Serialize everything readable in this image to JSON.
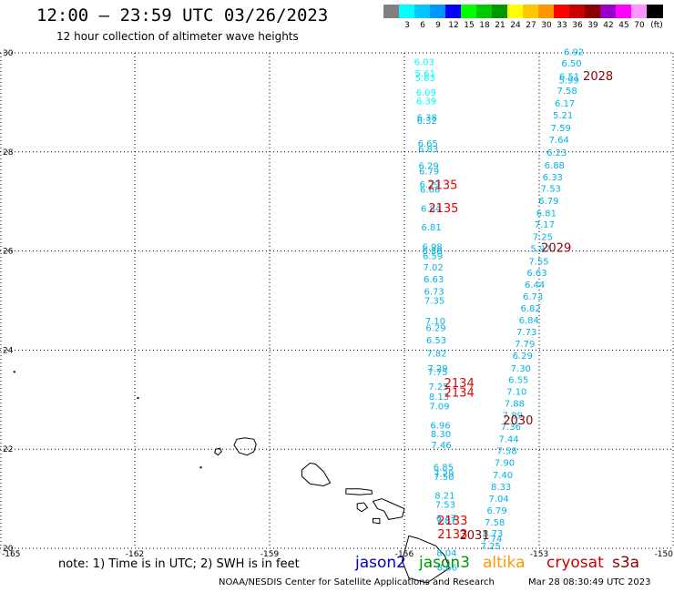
{
  "header": {
    "title": "12:00 – 23:59 UTC 03/26/2023",
    "subtitle": "12 hour collection of altimeter wave heights"
  },
  "legend": {
    "unit": "(ft)",
    "items": [
      {
        "label": "",
        "color": "#808080"
      },
      {
        "label": "3",
        "color": "#00ffff"
      },
      {
        "label": "6",
        "color": "#00c8ff"
      },
      {
        "label": "9",
        "color": "#0096ff"
      },
      {
        "label": "12",
        "color": "#0000ff"
      },
      {
        "label": "15",
        "color": "#00ff00"
      },
      {
        "label": "18",
        "color": "#00c800"
      },
      {
        "label": "21",
        "color": "#009600"
      },
      {
        "label": "24",
        "color": "#ffff00"
      },
      {
        "label": "27",
        "color": "#ffc800"
      },
      {
        "label": "30",
        "color": "#ff9600"
      },
      {
        "label": "33",
        "color": "#ff0000"
      },
      {
        "label": "36",
        "color": "#c80000"
      },
      {
        "label": "39",
        "color": "#8b0000"
      },
      {
        "label": "42",
        "color": "#9600c8"
      },
      {
        "label": "45",
        "color": "#ff00ff"
      },
      {
        "label": "70",
        "color": "#ff96ff"
      },
      {
        "label": "",
        "color": "#000000"
      }
    ]
  },
  "map": {
    "lon_range": [
      -165,
      -150
    ],
    "lat_range": [
      20,
      30
    ],
    "lon_ticks": [
      -165,
      -162,
      -159,
      -156,
      -153,
      -150
    ],
    "lat_ticks": [
      20,
      22,
      24,
      26,
      28,
      30
    ],
    "lon_tick_labels": [
      "-165",
      "-162",
      "-159",
      "-156",
      "-153",
      "-150"
    ],
    "lat_tick_labels": [
      "20",
      "22",
      "24",
      "26",
      "28",
      "30"
    ]
  },
  "colors": {
    "cyan": "#00ffff",
    "light_blue": "#00b4e6",
    "red": "#e60000",
    "dark_red": "#8b0000"
  },
  "tracks": [
    {
      "name": "west-track",
      "points": [
        {
          "lat": 29.75,
          "lon": -155.56,
          "v": "6.03",
          "c": "cyan"
        },
        {
          "lat": 29.52,
          "lon": -155.54,
          "v": "5.61",
          "c": "cyan"
        },
        {
          "lat": 29.43,
          "lon": -155.54,
          "v": "5.83",
          "c": "cyan"
        },
        {
          "lat": 29.14,
          "lon": -155.52,
          "v": "6.09",
          "c": "cyan"
        },
        {
          "lat": 28.96,
          "lon": -155.51,
          "v": "6.39",
          "c": "cyan"
        },
        {
          "lat": 28.63,
          "lon": -155.5,
          "v": "6.38",
          "c": "light_blue"
        },
        {
          "lat": 28.57,
          "lon": -155.5,
          "v": "6.32",
          "c": "light_blue"
        },
        {
          "lat": 28.11,
          "lon": -155.48,
          "v": "6.65",
          "c": "light_blue"
        },
        {
          "lat": 28.0,
          "lon": -155.47,
          "v": "6.83",
          "c": "light_blue"
        },
        {
          "lat": 27.66,
          "lon": -155.46,
          "v": "6.29",
          "c": "light_blue"
        },
        {
          "lat": 27.55,
          "lon": -155.45,
          "v": "6.79",
          "c": "light_blue"
        },
        {
          "lat": 27.28,
          "lon": -155.44,
          "v": "6.29",
          "c": "light_blue"
        },
        {
          "lat": 27.18,
          "lon": -155.43,
          "v": "6.66",
          "c": "light_blue"
        },
        {
          "lat": 26.79,
          "lon": -155.41,
          "v": "6.84",
          "c": "light_blue"
        },
        {
          "lat": 26.42,
          "lon": -155.4,
          "v": "6.81",
          "c": "light_blue"
        },
        {
          "lat": 26.02,
          "lon": -155.38,
          "v": "6.98",
          "c": "light_blue"
        },
        {
          "lat": 25.94,
          "lon": -155.38,
          "v": "6.88",
          "c": "light_blue"
        },
        {
          "lat": 25.84,
          "lon": -155.37,
          "v": "6.59",
          "c": "light_blue"
        },
        {
          "lat": 25.61,
          "lon": -155.36,
          "v": "7.02",
          "c": "light_blue"
        },
        {
          "lat": 25.37,
          "lon": -155.35,
          "v": "6.63",
          "c": "light_blue"
        },
        {
          "lat": 25.12,
          "lon": -155.34,
          "v": "6.73",
          "c": "light_blue"
        },
        {
          "lat": 24.94,
          "lon": -155.33,
          "v": "7.35",
          "c": "light_blue"
        },
        {
          "lat": 24.52,
          "lon": -155.31,
          "v": "7.10",
          "c": "light_blue"
        },
        {
          "lat": 24.38,
          "lon": -155.3,
          "v": "6.29",
          "c": "light_blue"
        },
        {
          "lat": 24.14,
          "lon": -155.29,
          "v": "6.53",
          "c": "light_blue"
        },
        {
          "lat": 23.87,
          "lon": -155.28,
          "v": "7.82",
          "c": "light_blue"
        },
        {
          "lat": 23.57,
          "lon": -155.26,
          "v": "7.29",
          "c": "light_blue"
        },
        {
          "lat": 23.49,
          "lon": -155.26,
          "v": "7.75",
          "c": "light_blue"
        },
        {
          "lat": 23.2,
          "lon": -155.24,
          "v": "7.25",
          "c": "light_blue"
        },
        {
          "lat": 23.0,
          "lon": -155.23,
          "v": "8.13",
          "c": "light_blue"
        },
        {
          "lat": 22.8,
          "lon": -155.22,
          "v": "7.09",
          "c": "light_blue"
        },
        {
          "lat": 22.42,
          "lon": -155.2,
          "v": "6.96",
          "c": "light_blue"
        },
        {
          "lat": 22.24,
          "lon": -155.19,
          "v": "8.30",
          "c": "light_blue"
        },
        {
          "lat": 22.02,
          "lon": -155.18,
          "v": "7.46",
          "c": "light_blue"
        },
        {
          "lat": 21.57,
          "lon": -155.13,
          "v": "6.85",
          "c": "light_blue"
        },
        {
          "lat": 21.44,
          "lon": -155.12,
          "v": "7.29",
          "c": "light_blue"
        },
        {
          "lat": 21.38,
          "lon": -155.12,
          "v": "7.50",
          "c": "light_blue"
        },
        {
          "lat": 21.0,
          "lon": -155.1,
          "v": "8.21",
          "c": "light_blue"
        },
        {
          "lat": 20.82,
          "lon": -155.09,
          "v": "7.53",
          "c": "light_blue"
        },
        {
          "lat": 20.54,
          "lon": -155.07,
          "v": "6.47",
          "c": "light_blue"
        },
        {
          "lat": 20.5,
          "lon": -155.07,
          "v": "7.87",
          "c": "light_blue"
        },
        {
          "lat": 19.84,
          "lon": -155.06,
          "v": "8.04",
          "c": "light_blue"
        },
        {
          "lat": 19.55,
          "lon": -155.05,
          "v": "8.66",
          "c": "light_blue"
        }
      ]
    },
    {
      "name": "east-track",
      "points": [
        {
          "lat": 29.95,
          "lon": -152.23,
          "v": "6.92",
          "c": "light_blue"
        },
        {
          "lat": 29.72,
          "lon": -152.28,
          "v": "6.50",
          "c": "light_blue"
        },
        {
          "lat": 29.46,
          "lon": -152.33,
          "v": "6.51",
          "c": "light_blue"
        },
        {
          "lat": 29.38,
          "lon": -152.34,
          "v": "5.99",
          "c": "light_blue"
        },
        {
          "lat": 29.17,
          "lon": -152.38,
          "v": "7.58",
          "c": "light_blue"
        },
        {
          "lat": 28.92,
          "lon": -152.43,
          "v": "6.17",
          "c": "light_blue"
        },
        {
          "lat": 28.68,
          "lon": -152.47,
          "v": "5.21",
          "c": "light_blue"
        },
        {
          "lat": 28.42,
          "lon": -152.52,
          "v": "7.59",
          "c": "light_blue"
        },
        {
          "lat": 28.18,
          "lon": -152.56,
          "v": "7.64",
          "c": "light_blue"
        },
        {
          "lat": 27.92,
          "lon": -152.61,
          "v": "6.23",
          "c": "light_blue"
        },
        {
          "lat": 27.67,
          "lon": -152.66,
          "v": "6.88",
          "c": "light_blue"
        },
        {
          "lat": 27.43,
          "lon": -152.7,
          "v": "6.33",
          "c": "light_blue"
        },
        {
          "lat": 27.2,
          "lon": -152.74,
          "v": "7.53",
          "c": "light_blue"
        },
        {
          "lat": 26.95,
          "lon": -152.79,
          "v": "6.79",
          "c": "light_blue"
        },
        {
          "lat": 26.7,
          "lon": -152.84,
          "v": "6.81",
          "c": "light_blue"
        },
        {
          "lat": 26.47,
          "lon": -152.88,
          "v": "7.17",
          "c": "light_blue"
        },
        {
          "lat": 26.22,
          "lon": -152.92,
          "v": "7.25",
          "c": "light_blue"
        },
        {
          "lat": 25.98,
          "lon": -152.97,
          "v": "5.97",
          "c": "light_blue"
        },
        {
          "lat": 25.73,
          "lon": -153.01,
          "v": "7.55",
          "c": "light_blue"
        },
        {
          "lat": 25.5,
          "lon": -153.05,
          "v": "6.63",
          "c": "light_blue"
        },
        {
          "lat": 25.26,
          "lon": -153.1,
          "v": "6.44",
          "c": "light_blue"
        },
        {
          "lat": 25.02,
          "lon": -153.14,
          "v": "6.73",
          "c": "light_blue"
        },
        {
          "lat": 24.78,
          "lon": -153.19,
          "v": "6.82",
          "c": "light_blue"
        },
        {
          "lat": 24.54,
          "lon": -153.23,
          "v": "6.84",
          "c": "light_blue"
        },
        {
          "lat": 24.3,
          "lon": -153.28,
          "v": "7.73",
          "c": "light_blue"
        },
        {
          "lat": 24.06,
          "lon": -153.32,
          "v": "7.79",
          "c": "light_blue"
        },
        {
          "lat": 23.82,
          "lon": -153.37,
          "v": "6.29",
          "c": "light_blue"
        },
        {
          "lat": 23.57,
          "lon": -153.41,
          "v": "7.30",
          "c": "light_blue"
        },
        {
          "lat": 23.34,
          "lon": -153.46,
          "v": "6.55",
          "c": "light_blue"
        },
        {
          "lat": 23.1,
          "lon": -153.5,
          "v": "7.10",
          "c": "light_blue"
        },
        {
          "lat": 22.86,
          "lon": -153.55,
          "v": "7.88",
          "c": "light_blue"
        },
        {
          "lat": 22.62,
          "lon": -153.59,
          "v": "7.89",
          "c": "light_blue"
        },
        {
          "lat": 22.39,
          "lon": -153.63,
          "v": "7.36",
          "c": "light_blue"
        },
        {
          "lat": 22.14,
          "lon": -153.68,
          "v": "7.44",
          "c": "light_blue"
        },
        {
          "lat": 21.9,
          "lon": -153.72,
          "v": "7.58",
          "c": "light_blue"
        },
        {
          "lat": 21.66,
          "lon": -153.77,
          "v": "7.90",
          "c": "light_blue"
        },
        {
          "lat": 21.42,
          "lon": -153.81,
          "v": "7.40",
          "c": "light_blue"
        },
        {
          "lat": 21.18,
          "lon": -153.85,
          "v": "8.33",
          "c": "light_blue"
        },
        {
          "lat": 20.94,
          "lon": -153.9,
          "v": "7.04",
          "c": "light_blue"
        },
        {
          "lat": 20.7,
          "lon": -153.94,
          "v": "6.79",
          "c": "light_blue"
        },
        {
          "lat": 20.46,
          "lon": -153.99,
          "v": "7.58",
          "c": "light_blue"
        },
        {
          "lat": 20.24,
          "lon": -154.03,
          "v": "8.73",
          "c": "light_blue"
        },
        {
          "lat": 20.13,
          "lon": -154.05,
          "v": "7.74",
          "c": "light_blue"
        },
        {
          "lat": 19.98,
          "lon": -154.08,
          "v": "7.25",
          "c": "light_blue"
        }
      ]
    }
  ],
  "time_labels": [
    {
      "lat": 29.45,
      "lon": -151.69,
      "v": "2028",
      "c": "dark_red"
    },
    {
      "lat": 27.25,
      "lon": -155.15,
      "v": "2135",
      "c": "red"
    },
    {
      "lat": 26.78,
      "lon": -155.13,
      "v": "2135",
      "c": "red"
    },
    {
      "lat": 25.98,
      "lon": -152.62,
      "v": "2029",
      "c": "dark_red"
    },
    {
      "lat": 23.25,
      "lon": -154.78,
      "v": "2134",
      "c": "red"
    },
    {
      "lat": 23.06,
      "lon": -154.78,
      "v": "2134",
      "c": "red"
    },
    {
      "lat": 22.5,
      "lon": -153.47,
      "v": "2030",
      "c": "dark_red"
    },
    {
      "lat": 20.48,
      "lon": -154.93,
      "v": "2133",
      "c": "red"
    },
    {
      "lat": 20.2,
      "lon": -154.93,
      "v": "2133",
      "c": "red"
    },
    {
      "lat": 20.18,
      "lon": -154.44,
      "v": "2031",
      "c": "dark_red"
    }
  ],
  "islands": [
    {
      "name": "island-kauai",
      "pts": [
        [
          -159.79,
          22.08
        ],
        [
          -159.73,
          22.2
        ],
        [
          -159.55,
          22.23
        ],
        [
          -159.35,
          22.2
        ],
        [
          -159.3,
          22.1
        ],
        [
          -159.35,
          21.95
        ],
        [
          -159.5,
          21.88
        ],
        [
          -159.68,
          21.93
        ]
      ]
    },
    {
      "name": "island-niihau",
      "pts": [
        [
          -160.2,
          22.0
        ],
        [
          -160.1,
          22.02
        ],
        [
          -160.07,
          21.95
        ],
        [
          -160.15,
          21.88
        ],
        [
          -160.22,
          21.93
        ]
      ]
    },
    {
      "name": "island-oahu",
      "pts": [
        [
          -158.28,
          21.58
        ],
        [
          -158.1,
          21.72
        ],
        [
          -157.98,
          21.7
        ],
        [
          -157.8,
          21.55
        ],
        [
          -157.65,
          21.32
        ],
        [
          -157.8,
          21.26
        ],
        [
          -158.1,
          21.3
        ],
        [
          -158.28,
          21.45
        ]
      ]
    },
    {
      "name": "island-molokai",
      "pts": [
        [
          -157.3,
          21.2
        ],
        [
          -157.0,
          21.2
        ],
        [
          -156.73,
          21.17
        ],
        [
          -156.72,
          21.1
        ],
        [
          -157.0,
          21.08
        ],
        [
          -157.3,
          21.1
        ]
      ]
    },
    {
      "name": "island-lanai",
      "pts": [
        [
          -157.05,
          20.9
        ],
        [
          -156.9,
          20.92
        ],
        [
          -156.82,
          20.82
        ],
        [
          -156.95,
          20.74
        ],
        [
          -157.05,
          20.8
        ]
      ]
    },
    {
      "name": "island-maui",
      "pts": [
        [
          -156.7,
          20.95
        ],
        [
          -156.5,
          21.0
        ],
        [
          -156.3,
          20.92
        ],
        [
          -156.0,
          20.8
        ],
        [
          -156.05,
          20.63
        ],
        [
          -156.35,
          20.58
        ],
        [
          -156.45,
          20.75
        ],
        [
          -156.6,
          20.8
        ]
      ]
    },
    {
      "name": "island-kahoolawe",
      "pts": [
        [
          -156.7,
          20.6
        ],
        [
          -156.55,
          20.6
        ],
        [
          -156.55,
          20.5
        ],
        [
          -156.7,
          20.52
        ]
      ]
    },
    {
      "name": "island-hawaii",
      "pts": [
        [
          -155.9,
          20.25
        ],
        [
          -155.7,
          20.2
        ],
        [
          -155.3,
          20.05
        ],
        [
          -155.1,
          19.85
        ],
        [
          -155.0,
          19.6
        ],
        [
          -155.5,
          19.3
        ],
        [
          -155.9,
          19.4
        ],
        [
          -156.05,
          19.75
        ]
      ]
    }
  ],
  "specks": [
    [
      -164.7,
      23.58
    ],
    [
      -161.95,
      23.05
    ],
    [
      -160.55,
      21.65
    ]
  ],
  "footer": {
    "note": "note:  1) Time is in UTC; 2) SWH is in feet",
    "satellites": [
      {
        "label": "jason2",
        "color": "#0000c8"
      },
      {
        "label": "jason3",
        "color": "#009600"
      },
      {
        "label": "altika",
        "color": "#ff9600"
      },
      {
        "label": "cryosat",
        "color": "#c80000"
      },
      {
        "label": "s3a",
        "color": "#8b0000"
      }
    ],
    "credit": "NOAA/NESDIS Center for Satellite Applications and Research",
    "timestamp": "Mar 28 08:30:49 UTC 2023"
  }
}
